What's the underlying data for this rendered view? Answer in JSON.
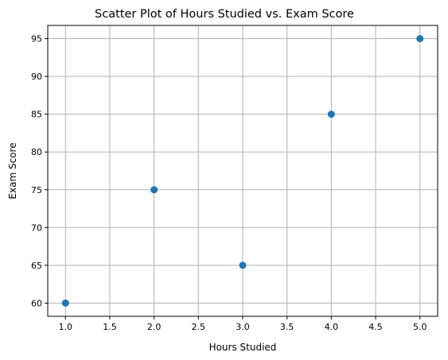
{
  "chart_data": {
    "type": "scatter",
    "title": "Scatter Plot of Hours Studied vs. Exam Score",
    "xlabel": "Hours Studied",
    "ylabel": "Exam Score",
    "series": [
      {
        "x": [
          1,
          2,
          3,
          4,
          5
        ],
        "y": [
          60,
          75,
          65,
          85,
          95
        ],
        "color": "#1f77b4"
      }
    ],
    "xlim": [
      0.8,
      5.2
    ],
    "ylim": [
      58.25,
      96.75
    ],
    "xticks": [
      1.0,
      1.5,
      2.0,
      2.5,
      3.0,
      3.5,
      4.0,
      4.5,
      5.0
    ],
    "xtick_labels": [
      "1.0",
      "1.5",
      "2.0",
      "2.5",
      "3.0",
      "3.5",
      "4.0",
      "4.5",
      "5.0"
    ],
    "yticks": [
      60,
      65,
      70,
      75,
      80,
      85,
      90,
      95
    ],
    "ytick_labels": [
      "60",
      "65",
      "70",
      "75",
      "80",
      "85",
      "90",
      "95"
    ],
    "grid": true,
    "grid_color": "#b0b0b0"
  }
}
